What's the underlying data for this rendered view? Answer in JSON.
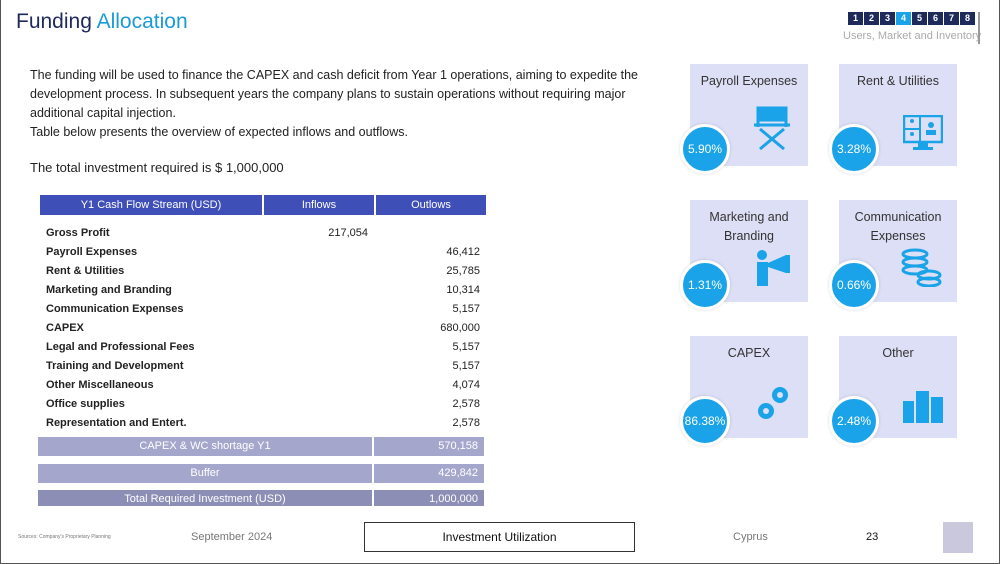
{
  "header": {
    "title_part1": "Funding",
    "title_part2": "Allocation",
    "nav_pages": [
      "1",
      "2",
      "3",
      "4",
      "5",
      "6",
      "7",
      "8"
    ],
    "active_page": "4",
    "section": "Users, Market and Inventory"
  },
  "intro": {
    "paragraph1": "The funding will be used to finance the CAPEX and cash deficit from Year 1 operations, aiming to expedite the development process. In subsequent years the company plans to sustain operations without requiring major additional capital injection.",
    "paragraph2": "Table below presents the overview of expected inflows and outflows.",
    "total": "The total investment required is $ 1,000,000"
  },
  "table": {
    "headers": [
      "Y1 Cash Flow Stream (USD)",
      "Inflows",
      "Outlows"
    ],
    "rows": [
      {
        "label": "Gross Profit",
        "inflow": "217,054",
        "outflow": ""
      },
      {
        "label": "Payroll Expenses",
        "inflow": "",
        "outflow": "46,412"
      },
      {
        "label": "Rent & Utilities",
        "inflow": "",
        "outflow": "25,785"
      },
      {
        "label": "Marketing and Branding",
        "inflow": "",
        "outflow": "10,314"
      },
      {
        "label": "Communication Expenses",
        "inflow": "",
        "outflow": "5,157"
      },
      {
        "label": "CAPEX",
        "inflow": "",
        "outflow": "680,000"
      },
      {
        "label": "Legal and Professional Fees",
        "inflow": "",
        "outflow": "5,157"
      },
      {
        "label": "Training and Development",
        "inflow": "",
        "outflow": "5,157"
      },
      {
        "label": "Other Miscellaneous",
        "inflow": "",
        "outflow": "4,074"
      },
      {
        "label": "Office supplies",
        "inflow": "",
        "outflow": "2,578"
      },
      {
        "label": "Representation and Entert.",
        "inflow": "",
        "outflow": "2,578"
      }
    ],
    "summary": [
      {
        "label": "CAPEX & WC shortage Y1",
        "value": "570,158"
      },
      {
        "label": "Buffer",
        "value": "429,842"
      },
      {
        "label": "Total Required Investment (USD)",
        "value": "1,000,000"
      }
    ]
  },
  "cards": [
    {
      "title": "Payroll Expenses",
      "pct": "5.90%",
      "icon": "director-chair-icon"
    },
    {
      "title": "Rent & Utilities",
      "pct": "3.28%",
      "icon": "video-conference-icon"
    },
    {
      "title": "Marketing and Branding",
      "pct": "1.31%",
      "icon": "megaphone-icon"
    },
    {
      "title": "Communication Expenses",
      "pct": "0.66%",
      "icon": "coins-icon"
    },
    {
      "title": "CAPEX",
      "pct": "86.38%",
      "icon": "gears-icon"
    },
    {
      "title": "Other",
      "pct": "2.48%",
      "icon": "buildings-icon"
    }
  ],
  "colors": {
    "navy": "#1e2a5a",
    "accent": "#1aa3e8",
    "table_header": "#3f4fb8",
    "card_bg": "#dcdff5"
  },
  "footer": {
    "sources": "Sources: Company's Proprietary Planning",
    "date": "September 2024",
    "section": "Investment Utilization",
    "country": "Cyprus",
    "page": "23"
  }
}
